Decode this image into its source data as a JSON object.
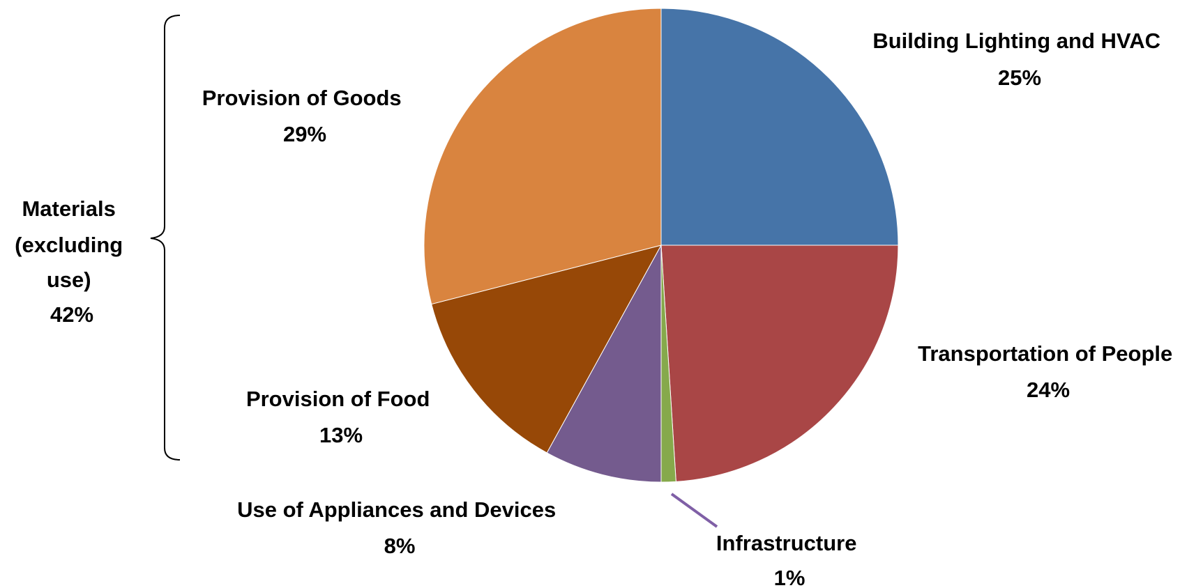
{
  "chart_data": {
    "type": "pie",
    "title": "",
    "start_angle_deg": 0,
    "direction": "clockwise",
    "slices": [
      {
        "label": "Building Lighting and HVAC",
        "value": 25,
        "value_label": "25%",
        "color": "#4674A8"
      },
      {
        "label": "Transportation of People",
        "value": 24,
        "value_label": "24%",
        "color": "#A94646"
      },
      {
        "label": "Infrastructure",
        "value": 1,
        "value_label": "1%",
        "color": "#86A94B"
      },
      {
        "label": "Use of Appliances and Devices",
        "value": 8,
        "value_label": "8%",
        "color": "#745B8E"
      },
      {
        "label": "Provision of Food",
        "value": 13,
        "value_label": "13%",
        "color": "#974807"
      },
      {
        "label": "Provision of Goods",
        "value": 29,
        "value_label": "29%",
        "color": "#D9843F"
      }
    ],
    "group_annotation": {
      "label_lines": [
        "Materials",
        "(excluding",
        "use)"
      ],
      "value_label": "42%",
      "members": [
        "Provision of Goods",
        "Provision of Food"
      ]
    },
    "leader_line_color": "#7F5FA6"
  }
}
